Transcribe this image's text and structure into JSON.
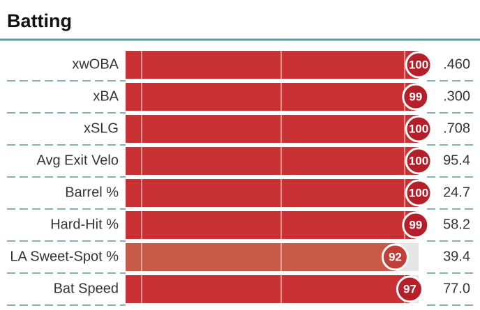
{
  "chart_data": {
    "type": "percentile-bar",
    "title": "Batting",
    "categories": [
      "xwOBA",
      "xBA",
      "xSLG",
      "Avg Exit Velo",
      "Barrel %",
      "Hard-Hit %",
      "LA Sweet-Spot %",
      "Bat Speed"
    ],
    "values": [
      100,
      99,
      100,
      100,
      100,
      99,
      92,
      97
    ],
    "stat_values": [
      ".460",
      ".300",
      ".708",
      "95.4",
      "24.7",
      "58.2",
      "39.4",
      "77.0"
    ],
    "colors": [
      "#c83234",
      "#c83234",
      "#c83234",
      "#c83234",
      "#c83234",
      "#c83234",
      "#c85a48",
      "#c83234"
    ],
    "circle_colors": [
      "#b3202a",
      "#b3202a",
      "#b3202a",
      "#b3202a",
      "#b3202a",
      "#b3202a",
      "#bf4038",
      "#b3202a"
    ],
    "xlim": [
      0,
      100
    ]
  }
}
